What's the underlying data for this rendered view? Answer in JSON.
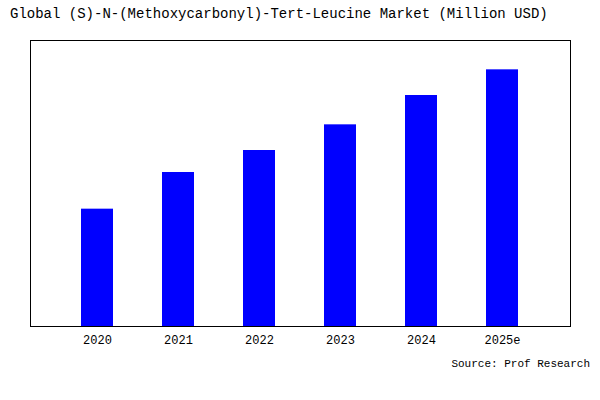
{
  "chart_data": {
    "type": "bar",
    "title": "Global (S)-N-(Methoxycarbonyl)-Tert-Leucine Market (Million USD)",
    "categories": [
      "2020",
      "2021",
      "2022",
      "2023",
      "2024",
      "2025e"
    ],
    "values": [
      32,
      42,
      48,
      55,
      63,
      70
    ],
    "color": "#0000FF",
    "ylim": [
      0,
      78
    ],
    "grid": false,
    "tick_labels": "x",
    "annotations": [
      "Source: Prof Research"
    ]
  }
}
